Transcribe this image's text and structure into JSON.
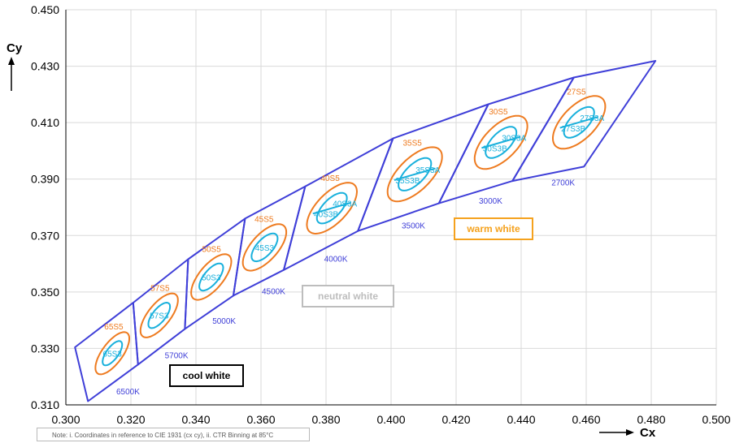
{
  "chart_data": {
    "type": "scatter",
    "xlabel": "Cx",
    "ylabel": "Cy",
    "xlim": [
      0.3,
      0.5
    ],
    "ylim": [
      0.31,
      0.45
    ],
    "x_ticks": [
      "0.300",
      "0.320",
      "0.340",
      "0.360",
      "0.380",
      "0.400",
      "0.420",
      "0.440",
      "0.460",
      "0.480",
      "0.500"
    ],
    "y_ticks": [
      "0.310",
      "0.330",
      "0.350",
      "0.370",
      "0.390",
      "0.410",
      "0.430",
      "0.450"
    ],
    "grid": true,
    "note": "Note: i. Coordinates in reference to CIE 1931  (cx cy), ii. CTR Binning at 85°C",
    "zones": [
      {
        "label": "cool white",
        "color": "#000000"
      },
      {
        "label": "neutral white",
        "color": "#bdbdbd"
      },
      {
        "label": "warm white",
        "color": "#f5a21e"
      }
    ],
    "colors": {
      "cct_quad": "#3f3fd8",
      "step5": "#ee7b20",
      "step3": "#18b0dc"
    },
    "cct_bins": [
      {
        "label": "6500K",
        "polygon": [
          [
            0.3028,
            0.3304
          ],
          [
            0.3207,
            0.3462
          ],
          [
            0.3222,
            0.3243
          ],
          [
            0.3068,
            0.3113
          ]
        ]
      },
      {
        "label": "5700K",
        "polygon": [
          [
            0.3207,
            0.3462
          ],
          [
            0.3376,
            0.3616
          ],
          [
            0.3366,
            0.3369
          ],
          [
            0.3222,
            0.3243
          ]
        ]
      },
      {
        "label": "5000K",
        "polygon": [
          [
            0.3376,
            0.3616
          ],
          [
            0.3551,
            0.376
          ],
          [
            0.3515,
            0.3487
          ],
          [
            0.3366,
            0.3369
          ]
        ]
      },
      {
        "label": "4500K",
        "polygon": [
          [
            0.3551,
            0.376
          ],
          [
            0.3736,
            0.3874
          ],
          [
            0.367,
            0.3578
          ],
          [
            0.3515,
            0.3487
          ]
        ]
      },
      {
        "label": "4000K",
        "polygon": [
          [
            0.3736,
            0.3874
          ],
          [
            0.4006,
            0.4044
          ],
          [
            0.3898,
            0.3716
          ],
          [
            0.367,
            0.3578
          ]
        ]
      },
      {
        "label": "3500K",
        "polygon": [
          [
            0.4006,
            0.4044
          ],
          [
            0.4299,
            0.4165
          ],
          [
            0.4147,
            0.3814
          ],
          [
            0.3898,
            0.3716
          ]
        ]
      },
      {
        "label": "3000K",
        "polygon": [
          [
            0.4299,
            0.4165
          ],
          [
            0.4562,
            0.426
          ],
          [
            0.4373,
            0.3893
          ],
          [
            0.4147,
            0.3814
          ]
        ]
      },
      {
        "label": "2700K",
        "polygon": [
          [
            0.4562,
            0.426
          ],
          [
            0.4813,
            0.4319
          ],
          [
            0.4593,
            0.3944
          ],
          [
            0.4373,
            0.3893
          ]
        ]
      }
    ],
    "ellipse_bins": [
      {
        "step5": "65S5",
        "step3": "65S3",
        "split": false,
        "center": [
          0.3143,
          0.3283
        ],
        "a5": 0.0085,
        "b5": 0.0033,
        "a3": 0.0049,
        "b3": 0.0019,
        "angle": 59
      },
      {
        "step5": "57S5",
        "step3": "57S3",
        "split": false,
        "center": [
          0.3287,
          0.3417
        ],
        "a5": 0.009,
        "b5": 0.0036,
        "a3": 0.0052,
        "b3": 0.0021,
        "angle": 57
      },
      {
        "step5": "50S5",
        "step3": "50S3",
        "split": false,
        "center": [
          0.3447,
          0.3553
        ],
        "a5": 0.0094,
        "b5": 0.0039,
        "a3": 0.0056,
        "b3": 0.0023,
        "angle": 56
      },
      {
        "step5": "45S5",
        "step3": "45S3",
        "split": false,
        "center": [
          0.3611,
          0.3658
        ],
        "a5": 0.0097,
        "b5": 0.0043,
        "a3": 0.0058,
        "b3": 0.0026,
        "angle": 54
      },
      {
        "step5": "40S5",
        "step3": "40S3A",
        "step3b": "40S3B",
        "split": true,
        "center": [
          0.3818,
          0.3797
        ],
        "a5": 0.0108,
        "b5": 0.0049,
        "a3": 0.0065,
        "b3": 0.0029,
        "angle": 52
      },
      {
        "step5": "35S5",
        "step3": "35S3A",
        "step3b": "35S3B",
        "split": true,
        "center": [
          0.4073,
          0.3917
        ],
        "a5": 0.0116,
        "b5": 0.0053,
        "a3": 0.007,
        "b3": 0.0031,
        "angle": 51
      },
      {
        "step5": "30S5",
        "step3": "30S3A",
        "step3b": "30S3B",
        "split": true,
        "center": [
          0.4338,
          0.403
        ],
        "a5": 0.0112,
        "b5": 0.0054,
        "a3": 0.0066,
        "b3": 0.0031,
        "angle": 52
      },
      {
        "step5": "27S5",
        "step3": "27S3A",
        "step3b": "27S3B",
        "split": true,
        "center": [
          0.4578,
          0.4101
        ],
        "a5": 0.0111,
        "b5": 0.0054,
        "a3": 0.0065,
        "b3": 0.003,
        "angle": 52
      }
    ]
  }
}
